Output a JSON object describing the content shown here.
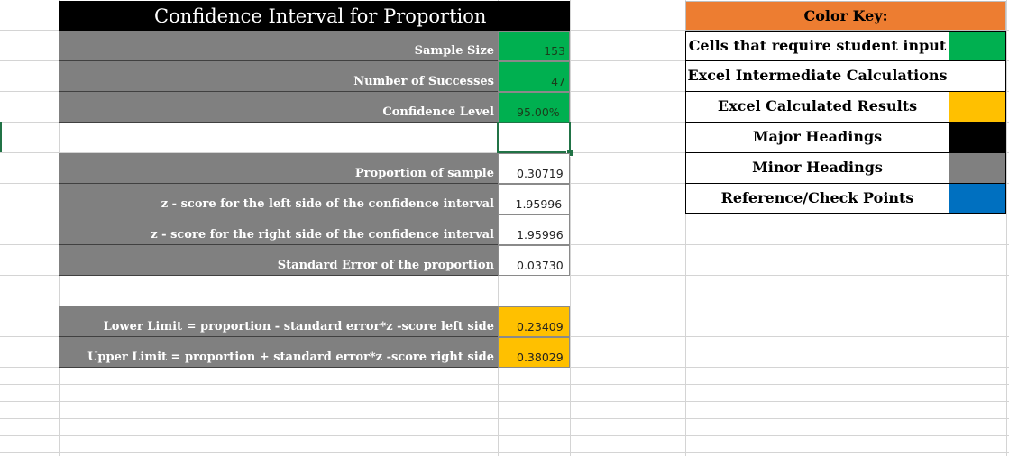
{
  "calculator": {
    "title": "Confidence Interval for Proportion",
    "inputs": [
      {
        "label": "Sample Size",
        "value": "153"
      },
      {
        "label": "Number of Successes",
        "value": "47"
      },
      {
        "label": "Confidence Level",
        "value": "95.00%"
      }
    ],
    "intermediate": [
      {
        "label": "Proportion of sample",
        "value": "0.30719"
      },
      {
        "label": "z - score for the left side of the confidence interval",
        "value": "-1.95996"
      },
      {
        "label": "z - score for the right side of the confidence interval",
        "value": "1.95996"
      },
      {
        "label": "Standard Error of the proportion",
        "value": "0.03730"
      }
    ],
    "results": [
      {
        "label": "Lower Limit = proportion - standard error*z -score left side",
        "value": "0.23409"
      },
      {
        "label": "Upper Limit = proportion + standard error*z -score right side",
        "value": "0.38029"
      }
    ]
  },
  "color_key": {
    "title": "Color Key:",
    "items": [
      {
        "label": "Cells that require student input",
        "color": "#00b050"
      },
      {
        "label": "Excel Intermediate Calculations",
        "color": "#ffffff"
      },
      {
        "label": "Excel Calculated Results",
        "color": "#ffc000"
      },
      {
        "label": "Major Headings",
        "color": "#000000"
      },
      {
        "label": "Minor Headings",
        "color": "#808080"
      },
      {
        "label": "Reference/Check Points",
        "color": "#0070c0"
      }
    ]
  },
  "colors": {
    "input": "#00b050",
    "results": "#ffc000",
    "major_heading": "#000000",
    "minor_heading": "#808080",
    "key_header": "#ed7d31",
    "selection": "#217346"
  }
}
